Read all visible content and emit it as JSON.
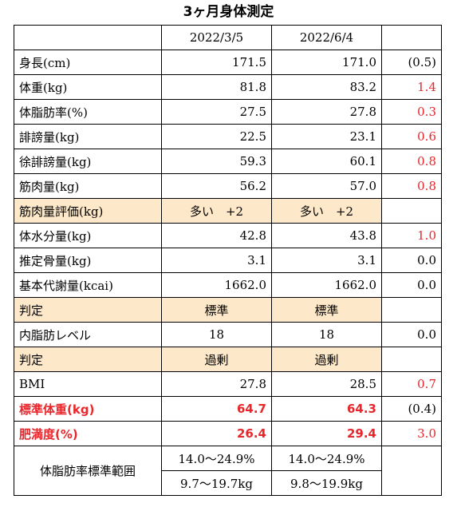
{
  "title": "3ヶ月身体測定",
  "header": {
    "label": "",
    "date1": "2022/3/5",
    "date2": "2022/6/4",
    "diff": ""
  },
  "rows": [
    {
      "label": "身長(cm)",
      "v1": "171.5",
      "v2": "171.0",
      "diff": "(0.5)"
    },
    {
      "label": "体重(kg)",
      "v1": "81.8",
      "v2": "83.2",
      "diff": "1.4"
    },
    {
      "label": "体脂肪率(%)",
      "v1": "27.5",
      "v2": "27.8",
      "diff": "0.3"
    },
    {
      "label": "誹謗量(kg)",
      "v1": "22.5",
      "v2": "23.1",
      "diff": "0.6"
    },
    {
      "label": "徐誹謗量(kg)",
      "v1": "59.3",
      "v2": "60.1",
      "diff": "0.8"
    },
    {
      "label": "筋肉量(kg)",
      "v1": "56.2",
      "v2": "57.0",
      "diff": "0.8"
    },
    {
      "label": "筋肉量評価(kg)",
      "v1": "多い　+2",
      "v2": "多い　+2",
      "diff": ""
    },
    {
      "label": "体水分量(kg)",
      "v1": "42.8",
      "v2": "43.8",
      "diff": "1.0"
    },
    {
      "label": "推定骨量(kg)",
      "v1": "3.1",
      "v2": "3.1",
      "diff": "0.0"
    },
    {
      "label": "基本代謝量(kcai)",
      "v1": "1662.0",
      "v2": "1662.0",
      "diff": "0.0"
    },
    {
      "label": "判定",
      "v1": "標準",
      "v2": "標準",
      "diff": ""
    },
    {
      "label": "内脂肪レベル",
      "v1": "18",
      "v2": "18",
      "diff": "0.0"
    },
    {
      "label": "判定",
      "v1": "過剰",
      "v2": "過剰",
      "diff": ""
    },
    {
      "label": "BMI",
      "v1": "27.8",
      "v2": "28.5",
      "diff": "0.7"
    },
    {
      "label": "標準体重(kg)",
      "v1": "64.7",
      "v2": "64.3",
      "diff": "(0.4)"
    },
    {
      "label": "肥満度(%)",
      "v1": "26.4",
      "v2": "29.4",
      "diff": "3.0"
    }
  ],
  "range": {
    "label": "体脂肪率標準範囲",
    "pct1": "14.0〜24.9%",
    "pct2": "14.0〜24.9%",
    "kg1": "9.7〜19.7kg",
    "kg2": "9.8〜19.9kg"
  },
  "colors": {
    "shade": "#fde9c9",
    "red": "#e8262b"
  }
}
